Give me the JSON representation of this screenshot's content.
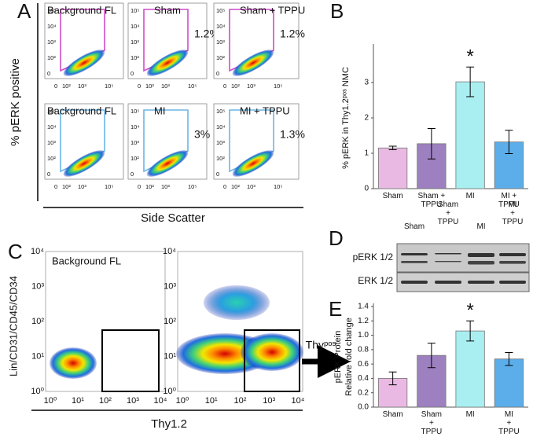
{
  "panel_a": {
    "letter": "A",
    "ylabel": "% pERK positive",
    "xlabel": "Side Scatter",
    "yticks": [
      "10⁵",
      "10⁴",
      "10³",
      "10²",
      "0"
    ],
    "xticks": [
      "0",
      "10²",
      "10³",
      "10⁵"
    ],
    "plots": [
      {
        "title": "Background FL"
      },
      {
        "title": "Sham",
        "percent": "1.2%"
      },
      {
        "title": "Sham + TPPU",
        "percent": "1.2%"
      },
      {
        "title": "Background FL"
      },
      {
        "title": "MI",
        "percent": "3%"
      },
      {
        "title": "MI + TPPU",
        "percent": "1.3%"
      }
    ]
  },
  "panel_c": {
    "letter": "C",
    "ylabel": "Lin/CD31/CD45/CD34",
    "xlabel": "Thy1.2",
    "title": "Background FL",
    "ticks": [
      "10⁰",
      "10¹",
      "10²",
      "10³",
      "10⁴"
    ],
    "arrow_label": "Thyᵖᵒˢ"
  },
  "panel_d": {
    "letter": "D",
    "lanes": [
      "Sham",
      "Sham\n+\nTPPU",
      "MI",
      "MI\n+\nTPPU"
    ],
    "rows": [
      "pERK 1/2",
      "ERK 1/2"
    ]
  },
  "chart_data": [
    {
      "type": "bar",
      "panel_label": "B",
      "ylabel": "% pERK in Thy1.2ᵖᵒˢ NMC",
      "categories": [
        "Sham",
        "Sham +\nTPPU",
        "MI",
        "MI +\nTPPU"
      ],
      "values": [
        1.15,
        1.27,
        3.02,
        1.32
      ],
      "errors": [
        0.05,
        0.43,
        0.42,
        0.33
      ],
      "colors": [
        "#e9b9e3",
        "#9c80bf",
        "#a9eff1",
        "#5caeea"
      ],
      "ylim": [
        0,
        4
      ],
      "yticks": [
        0,
        1,
        2,
        3
      ],
      "annotations": [
        {
          "text": "*",
          "category": "MI"
        }
      ]
    },
    {
      "type": "bar",
      "panel_label": "E",
      "ylabel": [
        "pERK Protein",
        "Relative fold change"
      ],
      "categories": [
        "Sham",
        "Sham\n+\nTPPU",
        "MI",
        "MI\n+\nTPPU"
      ],
      "values": [
        0.4,
        0.72,
        1.06,
        0.67
      ],
      "errors": [
        0.09,
        0.17,
        0.14,
        0.09
      ],
      "colors": [
        "#e9b9e3",
        "#9c80bf",
        "#a9eff1",
        "#5caeea"
      ],
      "ylim": [
        0,
        1.4
      ],
      "yticks": [
        {
          "value": 0,
          "label": "0.0"
        },
        {
          "value": 0.2,
          "label": "0.2"
        },
        {
          "value": 0.4,
          "label": "0.4"
        },
        {
          "value": 0.6,
          "label": "0.6"
        },
        {
          "value": 0.8,
          "label": "0.8"
        },
        {
          "value": 1.0,
          "label": "1.0"
        },
        {
          "value": 1.2,
          "label": "1.2"
        },
        {
          "value": 1.4,
          "label": "1.4"
        }
      ],
      "annotations": [
        {
          "text": "*",
          "category": "MI"
        }
      ]
    }
  ]
}
